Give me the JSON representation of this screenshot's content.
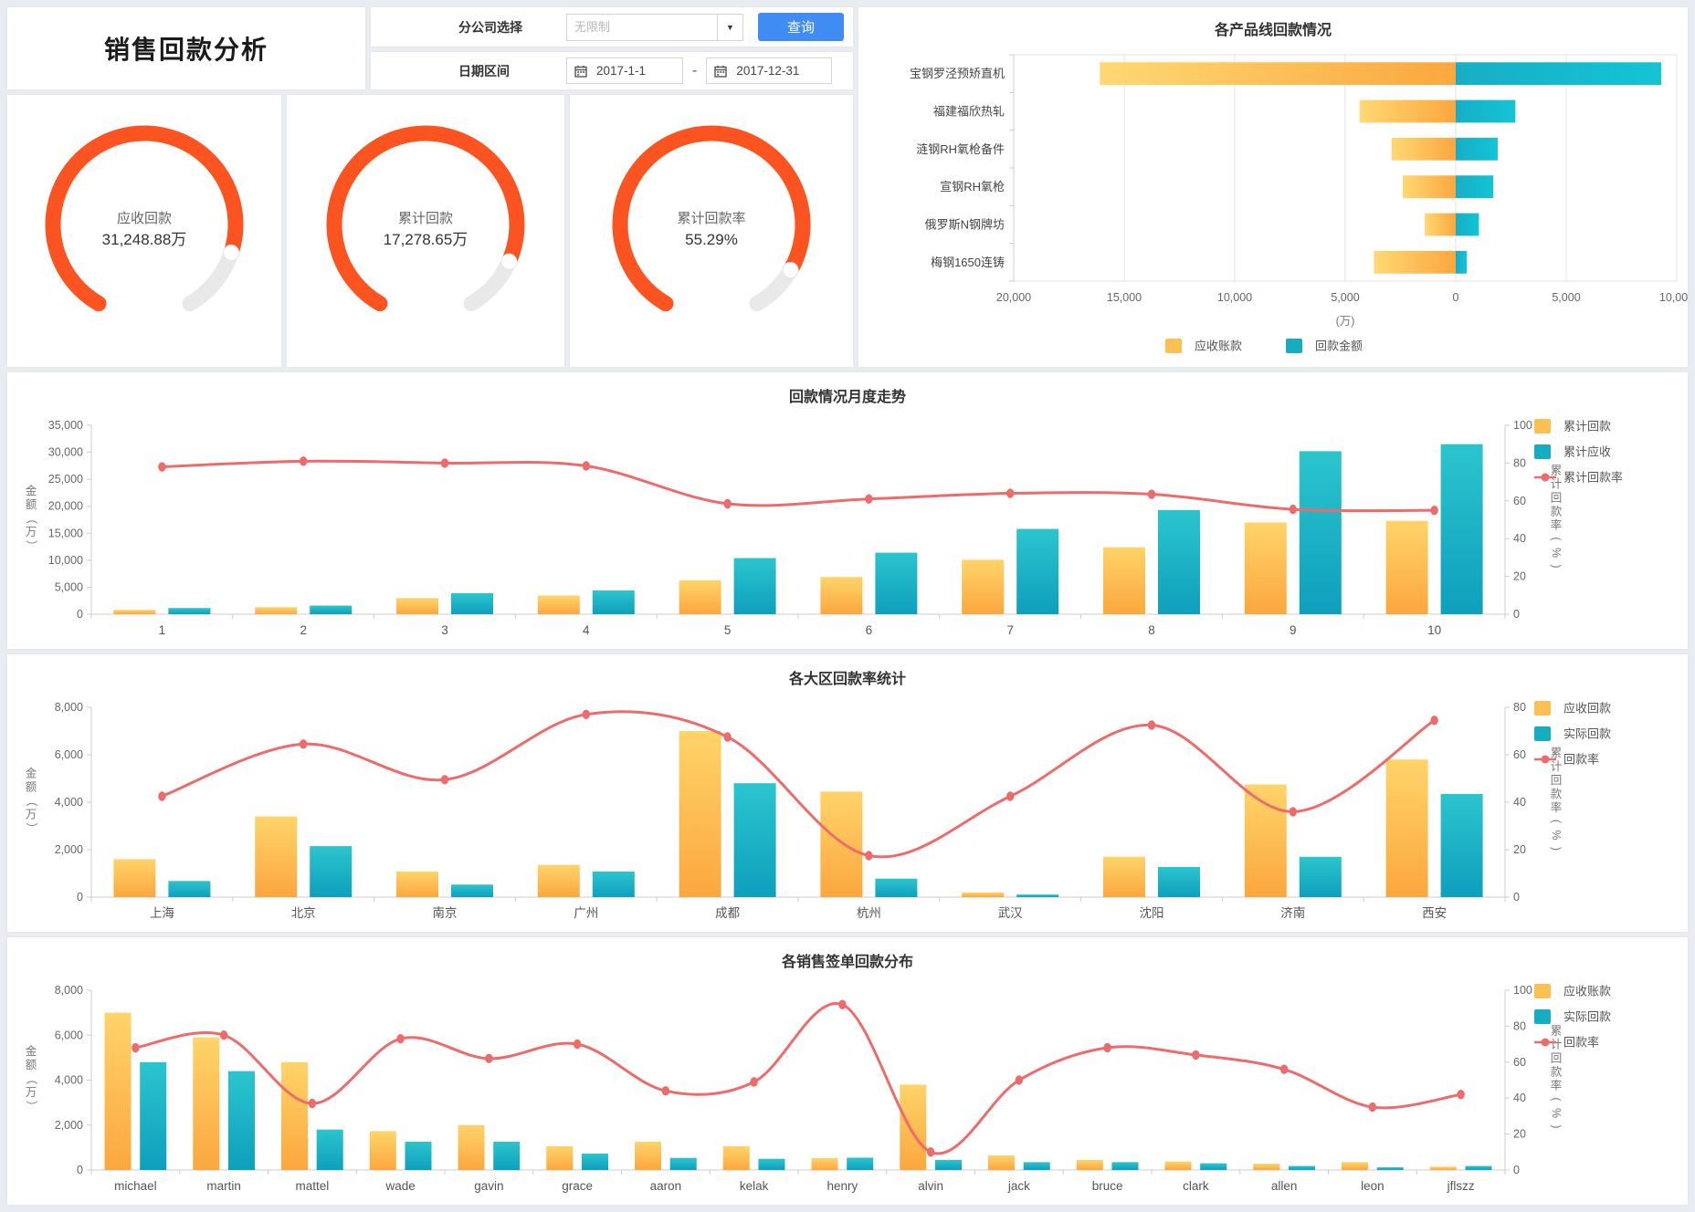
{
  "header": {
    "title": "销售回款分析"
  },
  "filters": {
    "company_label": "分公司选择",
    "company_placeholder": "无限制",
    "search_button": "查询",
    "date_label": "日期区间",
    "date_start": "2017-1-1",
    "date_separator": "-",
    "date_end": "2017-12-31"
  },
  "colors": {
    "bar_yellow_top": "#ffd46a",
    "bar_yellow_bottom": "#fba73e",
    "bar_teal_top": "#2bc5ce",
    "bar_teal_bottom": "#0e9fbd",
    "legend_yellow": "#fbc052",
    "legend_teal": "#17adc0",
    "line_red": "#ee6b6b",
    "gauge_orange": "#fb5420",
    "gauge_track": "#e9e9e9",
    "button_blue": "#3f8cf5"
  },
  "chart_data": [
    {
      "id": "gauges",
      "type": "gauge",
      "items": [
        {
          "label": "应收回款",
          "value": "31,248.88万",
          "fill_ratio": 0.86
        },
        {
          "label": "累计回款",
          "value": "17,278.65万",
          "fill_ratio": 0.88
        },
        {
          "label": "累计回款率",
          "value": "55.29%",
          "fill_ratio": 0.9
        }
      ]
    },
    {
      "id": "product-chart",
      "type": "diverging-bar",
      "title": "各产品线回款情况",
      "categories": [
        "宝钢罗泾预矫直机",
        "福建福欣热轧",
        "涟钢RH氧枪备件",
        "宣钢RH氧枪",
        "俄罗斯N钢牌坊",
        "梅钢1650连铸"
      ],
      "series": [
        {
          "name": "应收账款",
          "side": "left",
          "color": "yellow",
          "values": [
            16100,
            4350,
            2900,
            2400,
            1400,
            3700
          ]
        },
        {
          "name": "回款金额",
          "side": "right",
          "color": "teal",
          "values": [
            9300,
            2700,
            1900,
            1700,
            1050,
            500
          ]
        }
      ],
      "x_left_max": 20000,
      "x_right_max": 10000,
      "x_step": 5000,
      "x_unit": "(万)",
      "legend": [
        "应收账款",
        "回款金额"
      ]
    },
    {
      "id": "monthly-chart",
      "type": "combo",
      "title": "回款情况月度走势",
      "categories": [
        "1",
        "2",
        "3",
        "4",
        "5",
        "6",
        "7",
        "8",
        "9",
        "10"
      ],
      "left_axis": {
        "min": 0,
        "max": 35000,
        "step": 5000,
        "title": "金额（万）"
      },
      "right_axis": {
        "min": 0,
        "max": 100,
        "step": 20,
        "title": "累计回款率(%)"
      },
      "series": [
        {
          "name": "累计回款",
          "type": "bar",
          "color": "yellow",
          "axis": "left",
          "values": [
            800,
            1300,
            3000,
            3450,
            6300,
            6900,
            10100,
            12400,
            17000,
            17300
          ]
        },
        {
          "name": "累计应收",
          "type": "bar",
          "color": "teal",
          "axis": "left",
          "values": [
            1150,
            1600,
            3900,
            4400,
            10400,
            11400,
            15800,
            19300,
            30200,
            31500
          ]
        },
        {
          "name": "累计回款率",
          "type": "line",
          "color": "red",
          "axis": "right",
          "values": [
            78,
            81,
            80,
            78.5,
            58.5,
            61,
            64,
            63.5,
            55.5,
            55
          ]
        }
      ]
    },
    {
      "id": "region-chart",
      "type": "combo",
      "title": "各大区回款率统计",
      "categories": [
        "上海",
        "北京",
        "南京",
        "广州",
        "成都",
        "杭州",
        "武汉",
        "沈阳",
        "济南",
        "西安"
      ],
      "left_axis": {
        "min": 0,
        "max": 8000,
        "step": 2000,
        "title": "金额（万）"
      },
      "right_axis": {
        "min": 0,
        "max": 80,
        "step": 20,
        "title": "累计回款率(%)"
      },
      "series": [
        {
          "name": "应收回款",
          "type": "bar",
          "color": "yellow",
          "axis": "left",
          "values": [
            1600,
            3400,
            1080,
            1360,
            7000,
            4450,
            200,
            1700,
            4750,
            5800
          ]
        },
        {
          "name": "实际回款",
          "type": "bar",
          "color": "teal",
          "axis": "left",
          "values": [
            680,
            2150,
            530,
            1080,
            4800,
            780,
            110,
            1270,
            1700,
            4350
          ]
        },
        {
          "name": "回款率",
          "type": "line",
          "color": "red",
          "axis": "right",
          "values": [
            42.5,
            64.5,
            49.5,
            77,
            67.5,
            17.5,
            42.5,
            72.5,
            36,
            74.5
          ]
        }
      ]
    },
    {
      "id": "sales-chart",
      "type": "combo",
      "title": "各销售签单回款分布",
      "categories": [
        "michael",
        "martin",
        "mattel",
        "wade",
        "gavin",
        "grace",
        "aaron",
        "kelak",
        "henry",
        "alvin",
        "jack",
        "bruce",
        "clark",
        "allen",
        "leon",
        "jflszz"
      ],
      "left_axis": {
        "min": 0,
        "max": 8000,
        "step": 2000,
        "title": "金额（万）"
      },
      "right_axis": {
        "min": 0,
        "max": 100,
        "step": 20,
        "title": "累计回款率(%)"
      },
      "series": [
        {
          "name": "应收账款",
          "type": "bar",
          "color": "yellow",
          "axis": "left",
          "values": [
            7000,
            5900,
            4800,
            1730,
            2000,
            1060,
            1260,
            1060,
            530,
            3800,
            650,
            450,
            380,
            280,
            350,
            150
          ]
        },
        {
          "name": "实际回款",
          "type": "bar",
          "color": "teal",
          "axis": "left",
          "values": [
            4800,
            4400,
            1800,
            1260,
            1260,
            730,
            540,
            500,
            550,
            450,
            350,
            350,
            300,
            180,
            120,
            180
          ]
        },
        {
          "name": "回款率",
          "type": "line",
          "color": "red",
          "axis": "right",
          "values": [
            68,
            75,
            37,
            73,
            62,
            70,
            44,
            49,
            92,
            10,
            50,
            68,
            64,
            56,
            35,
            42
          ]
        }
      ]
    }
  ]
}
